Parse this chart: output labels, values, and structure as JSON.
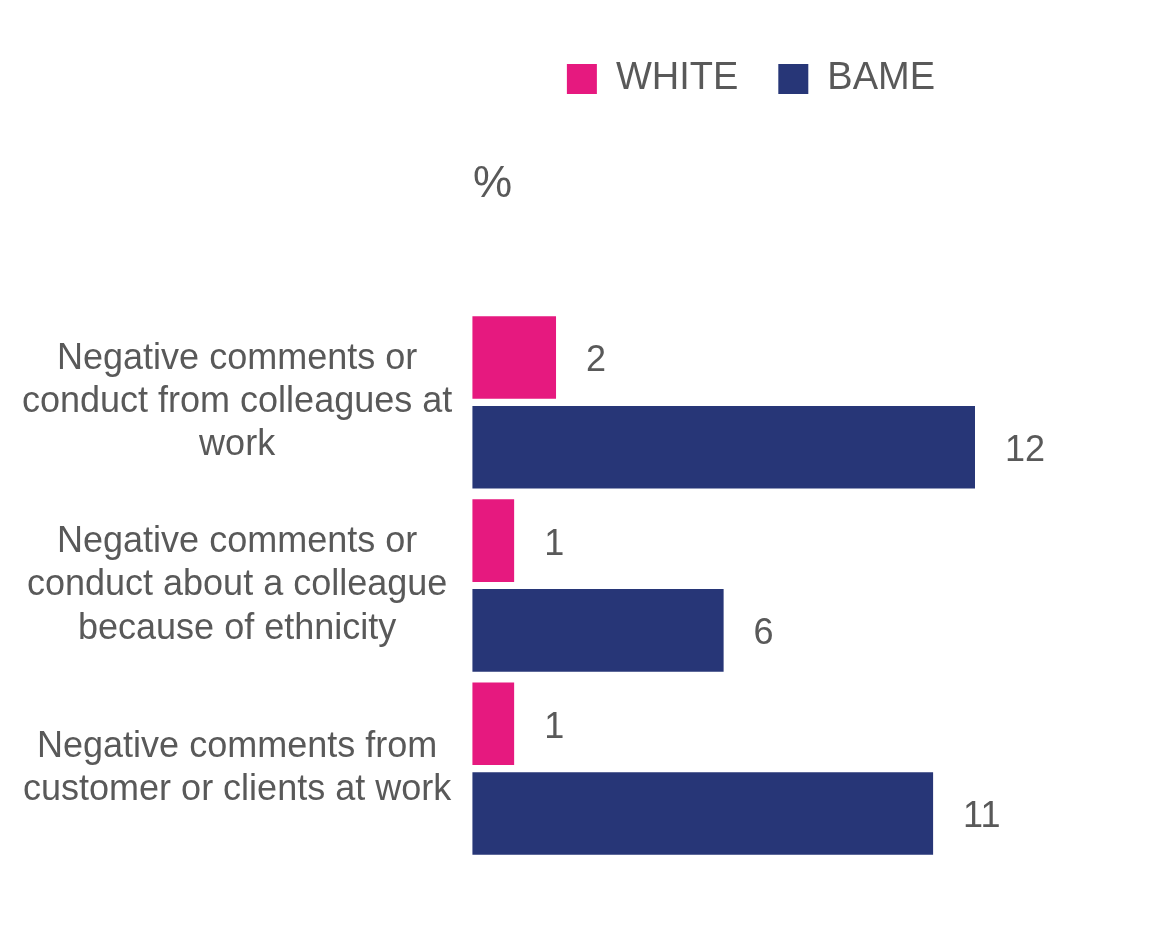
{
  "chart_data": {
    "type": "bar",
    "orientation": "horizontal",
    "title": "%",
    "categories": [
      "Negative comments or conduct from colleagues at work",
      "Negative comments or conduct about a colleague because of ethnicity",
      "Negative comments from customer or clients at work"
    ],
    "series": [
      {
        "name": "WHITE",
        "color": "#e6197f",
        "values": [
          2,
          1,
          1
        ]
      },
      {
        "name": "BAME",
        "color": "#273677",
        "values": [
          12,
          6,
          11
        ]
      }
    ],
    "tick_labels": "y",
    "data_labels": true,
    "legend": "top right"
  }
}
